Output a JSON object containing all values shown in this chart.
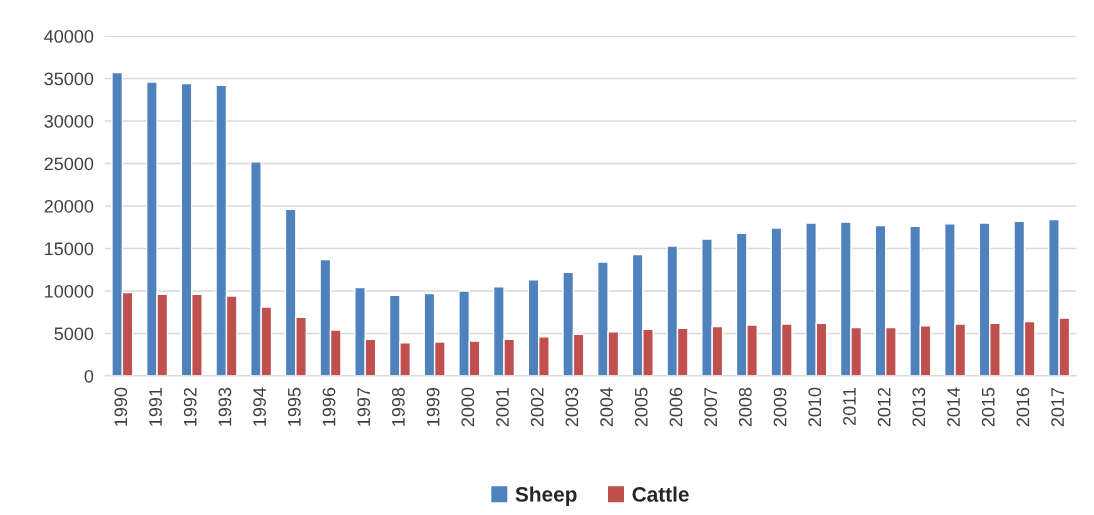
{
  "chart_data": {
    "type": "bar",
    "categories": [
      "1990",
      "1991",
      "1992",
      "1993",
      "1994",
      "1995",
      "1996",
      "1997",
      "1998",
      "1999",
      "2000",
      "2001",
      "2002",
      "2003",
      "2004",
      "2005",
      "2006",
      "2007",
      "2008",
      "2009",
      "2010",
      "2011",
      "2012",
      "2013",
      "2014",
      "2015",
      "2016",
      "2017"
    ],
    "series": [
      {
        "name": "Sheep",
        "color": "#4f81bd",
        "values": [
          35700,
          34600,
          34400,
          34200,
          25200,
          19600,
          13700,
          10400,
          9500,
          9700,
          10000,
          10500,
          11300,
          12200,
          13400,
          14300,
          15300,
          16100,
          16800,
          17400,
          18000,
          18100,
          17700,
          17600,
          17900,
          18000,
          18200,
          18400
        ]
      },
      {
        "name": "Cattle",
        "color": "#c0504d",
        "values": [
          9800,
          9600,
          9600,
          9400,
          8100,
          6900,
          5400,
          4300,
          3900,
          4000,
          4100,
          4300,
          4600,
          4900,
          5200,
          5500,
          5600,
          5800,
          6000,
          6100,
          6200,
          5700,
          5700,
          5900,
          6100,
          6200,
          6400,
          6800
        ]
      }
    ],
    "ylim": [
      0,
      40000
    ],
    "yticks": [
      0,
      5000,
      10000,
      15000,
      20000,
      25000,
      30000,
      35000,
      40000
    ],
    "grid": "y",
    "legend": "bottom"
  }
}
